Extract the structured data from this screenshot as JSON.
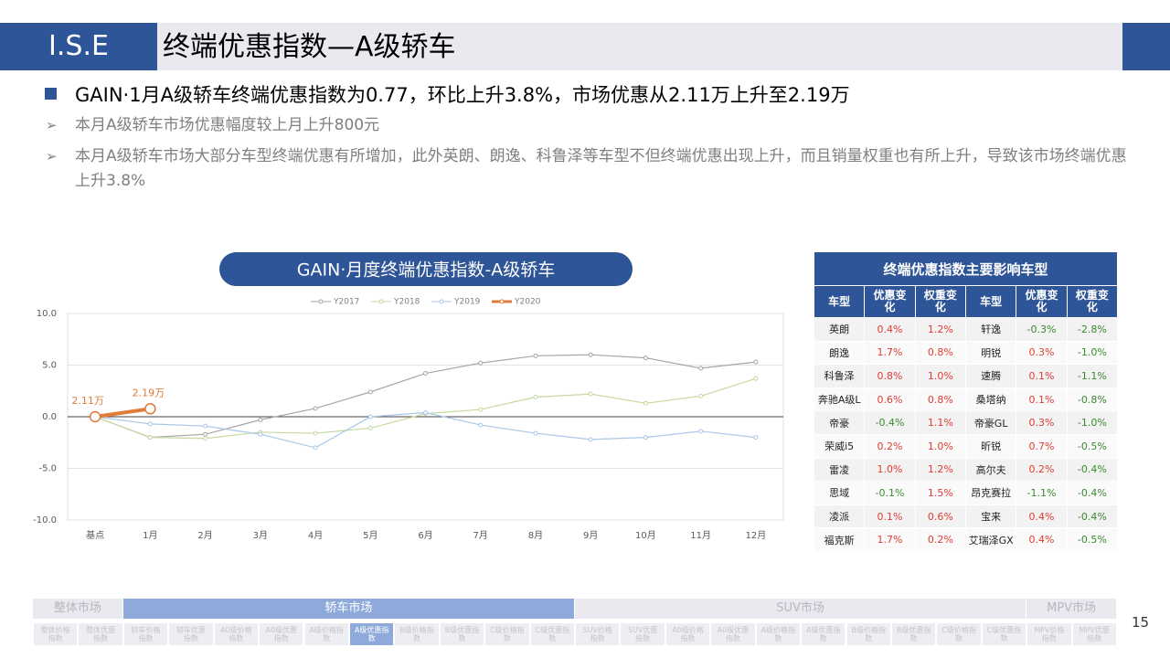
{
  "header": {
    "logo": "I.S.E",
    "title": "终端优惠指数—A级轿车"
  },
  "bullets": {
    "main": "GAIN·1月A级轿车终端优惠指数为0.77，环比上升3.8%，市场优惠从2.11万上升至2.19万",
    "points": [
      "本月A级轿车市场优惠幅度较上月上升800元",
      "本月A级轿车市场大部分车型终端优惠有所增加，此外英朗、朗逸、科鲁泽等车型不但终端优惠出现上升，而且销量权重也有所上升，导致该市场终端优惠上升3.8%"
    ]
  },
  "chart_data": {
    "type": "line",
    "title": "GAIN·月度终端优惠指数-A级轿车",
    "categories": [
      "基点",
      "1月",
      "2月",
      "3月",
      "4月",
      "5月",
      "6月",
      "7月",
      "8月",
      "9月",
      "10月",
      "11月",
      "12月"
    ],
    "series": [
      {
        "name": "Y2017",
        "color": "#a6a6a6",
        "values": [
          0,
          -2.0,
          -1.7,
          -0.3,
          0.8,
          2.4,
          4.2,
          5.2,
          5.9,
          6.0,
          5.7,
          4.7,
          5.3
        ]
      },
      {
        "name": "Y2018",
        "color": "#c5d9a0",
        "values": [
          0,
          -2.0,
          -2.1,
          -1.5,
          -1.6,
          -1.1,
          0.3,
          0.7,
          1.9,
          2.2,
          1.3,
          2.0,
          3.7
        ]
      },
      {
        "name": "Y2019",
        "color": "#a9c8e8",
        "values": [
          0,
          -0.7,
          -0.9,
          -1.7,
          -3.0,
          0.0,
          0.4,
          -0.8,
          -1.6,
          -2.2,
          -2.0,
          -1.4,
          -2.0
        ]
      },
      {
        "name": "Y2020",
        "color": "#e07b39",
        "values": [
          0,
          0.77,
          null,
          null,
          null,
          null,
          null,
          null,
          null,
          null,
          null,
          null,
          null
        ]
      }
    ],
    "annotations": [
      "2.11万",
      "2.19万"
    ],
    "ylim": [
      -10,
      10
    ],
    "yticks": [
      {
        "value": -10,
        "label": "-10.0"
      },
      {
        "value": -5,
        "label": "-5.0"
      },
      {
        "value": 0,
        "label": "0.0"
      },
      {
        "value": 5,
        "label": "5.0"
      },
      {
        "value": 10,
        "label": "10.0"
      }
    ],
    "grid": true,
    "legend": "top"
  },
  "table": {
    "title": "终端优惠指数主要影响车型",
    "headers": [
      "车型",
      "优惠变化",
      "权重变化",
      "车型",
      "优惠变化",
      "权重变化"
    ],
    "rows": [
      [
        "英朗",
        "0.4%",
        "1.2%",
        "轩逸",
        "-0.3%",
        "-2.8%"
      ],
      [
        "朗逸",
        "1.7%",
        "0.8%",
        "明锐",
        "0.3%",
        "-1.0%"
      ],
      [
        "科鲁泽",
        "0.8%",
        "1.0%",
        "速腾",
        "0.1%",
        "-1.1%"
      ],
      [
        "奔驰A级L",
        "0.6%",
        "0.8%",
        "桑塔纳",
        "0.1%",
        "-0.8%"
      ],
      [
        "帝豪",
        "-0.4%",
        "1.1%",
        "帝豪GL",
        "0.3%",
        "-1.0%"
      ],
      [
        "荣威i5",
        "0.2%",
        "1.0%",
        "昕锐",
        "0.7%",
        "-0.5%"
      ],
      [
        "雷凌",
        "1.0%",
        "1.2%",
        "高尔夫",
        "0.2%",
        "-0.4%"
      ],
      [
        "思域",
        "-0.1%",
        "1.5%",
        "昂克赛拉",
        "-1.1%",
        "-0.4%"
      ],
      [
        "凌派",
        "0.1%",
        "0.6%",
        "宝来",
        "0.4%",
        "-0.4%"
      ],
      [
        "福克斯",
        "1.7%",
        "0.2%",
        "艾瑞泽GX",
        "0.4%",
        "-0.5%"
      ]
    ]
  },
  "nav": {
    "groups": [
      "整体市场",
      "轿车市场",
      "SUV市场",
      "MPV市场"
    ],
    "items": [
      "整体价格指数",
      "整体优惠指数",
      "轿车价格指数",
      "轿车优惠指数",
      "A0级价格指数",
      "A0级优惠指数",
      "A级价格指数",
      "A级优惠指数",
      "B级价格指数",
      "B级优惠指数",
      "C级价格指数",
      "C级优惠指数",
      "SUV价格指数",
      "SUV优惠指数",
      "A0级价格指数",
      "A0级优惠指数",
      "A级价格指数",
      "A级优惠指数",
      "B级价格指数",
      "B级优惠指数",
      "C级价格指数",
      "C级优惠指数",
      "MPV价格指数",
      "MPV优惠指数"
    ]
  },
  "page_number": 15
}
